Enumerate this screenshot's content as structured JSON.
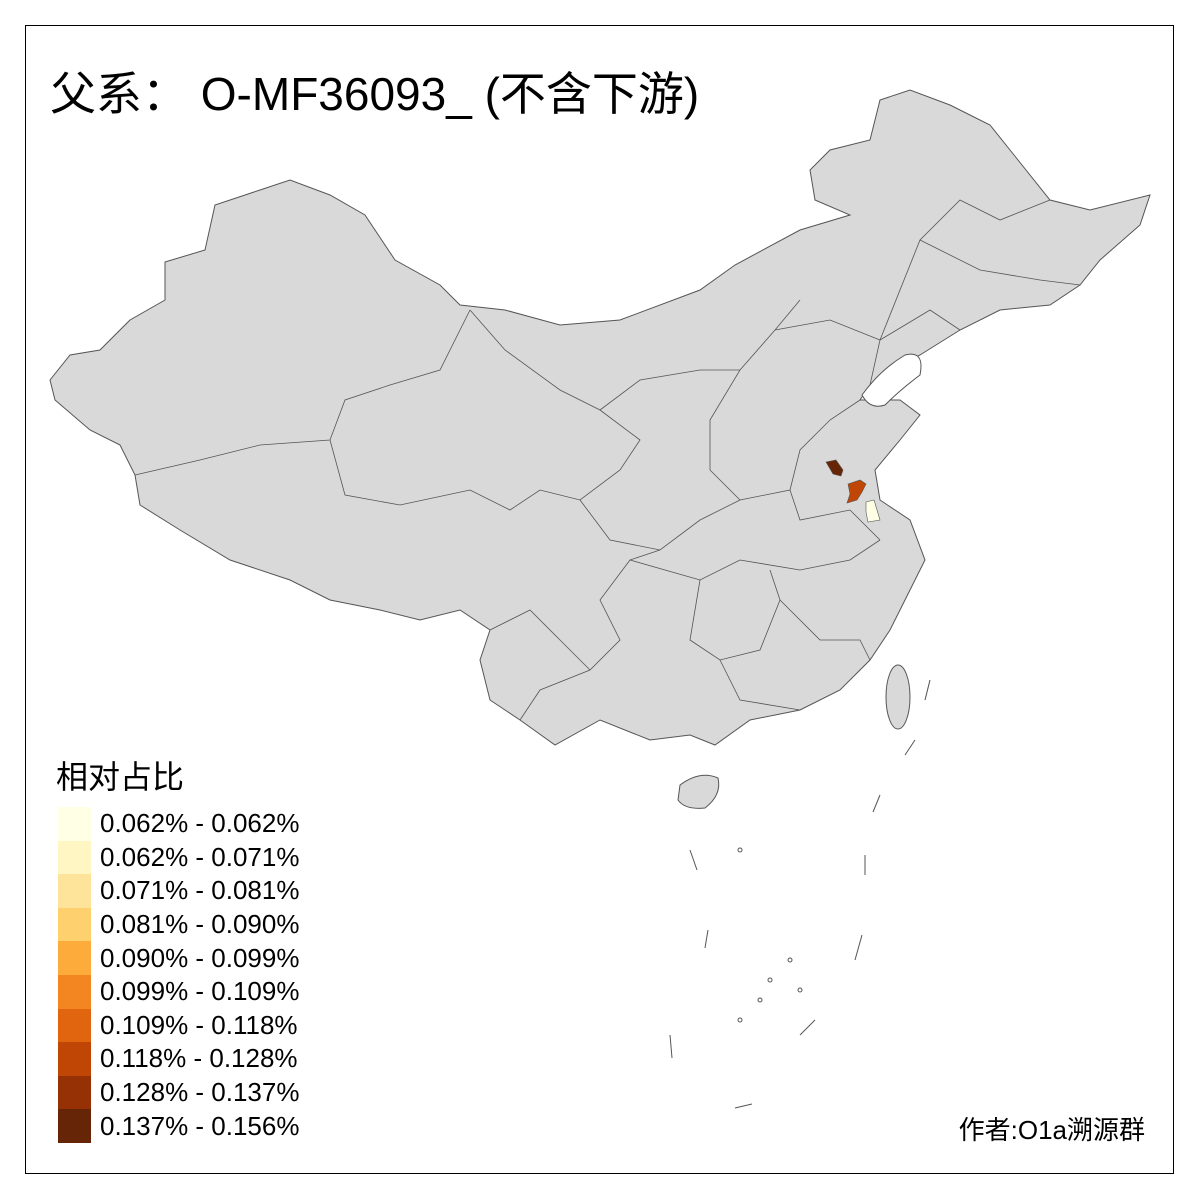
{
  "title": "父系： O-MF36093_ (不含下游)",
  "legend": {
    "title": "相对占比",
    "items": [
      {
        "label": "0.062% - 0.062%",
        "color": "#FFFFE5"
      },
      {
        "label": "0.062% - 0.071%",
        "color": "#FFF6C3"
      },
      {
        "label": "0.071% - 0.081%",
        "color": "#FEE39A"
      },
      {
        "label": "0.081% - 0.090%",
        "color": "#FED06E"
      },
      {
        "label": "0.090% - 0.099%",
        "color": "#FDAB3A"
      },
      {
        "label": "0.099% - 0.109%",
        "color": "#F38620"
      },
      {
        "label": "0.109% - 0.118%",
        "color": "#E1640F"
      },
      {
        "label": "0.118% - 0.128%",
        "color": "#BF4604"
      },
      {
        "label": "0.128% - 0.137%",
        "color": "#963005"
      },
      {
        "label": "0.137% - 0.156%",
        "color": "#662506"
      }
    ]
  },
  "map": {
    "base_color": "#D9D9D9",
    "border_color": "#555555",
    "highlighted_regions": [
      {
        "class": "0.137% - 0.156%",
        "color": "#662506"
      },
      {
        "class": "0.118% - 0.128%",
        "color": "#BF4604"
      },
      {
        "class": "0.062% - 0.062%",
        "color": "#FFFFE5"
      }
    ]
  },
  "author": "作者:O1a溯源群"
}
